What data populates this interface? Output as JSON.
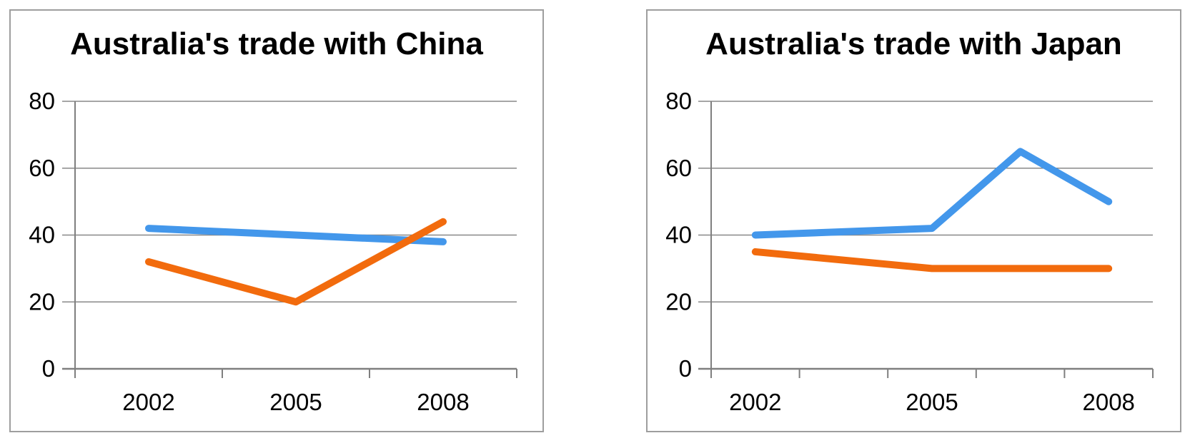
{
  "page": {
    "background_color": "#ffffff",
    "description": "Two side-by-side line charts comparing Australia's trade"
  },
  "chart_data": [
    {
      "type": "line",
      "title": "Australia's trade with China",
      "x_slots": 3,
      "x_tick_labels": [
        "2002",
        "2005",
        "2008"
      ],
      "ylim": [
        0,
        80
      ],
      "yticks": [
        0,
        20,
        40,
        60,
        80
      ],
      "grid": true,
      "legend": "none",
      "series": [
        {
          "name": "blue-series",
          "color": "#4397eb",
          "points": [
            {
              "slot": 0,
              "y": 42
            },
            {
              "slot": 1,
              "y": 40
            },
            {
              "slot": 2,
              "y": 38
            }
          ]
        },
        {
          "name": "orange-series",
          "color": "#f26b0d",
          "points": [
            {
              "slot": 0,
              "y": 32
            },
            {
              "slot": 1,
              "y": 20
            },
            {
              "slot": 2,
              "y": 44
            }
          ]
        }
      ]
    },
    {
      "type": "line",
      "title": "Australia's trade with Japan",
      "x_slots": 5,
      "x_tick_labels": [
        "2002",
        "",
        "2005",
        "",
        "2008"
      ],
      "ylim": [
        0,
        80
      ],
      "yticks": [
        0,
        20,
        40,
        60,
        80
      ],
      "grid": true,
      "legend": "none",
      "series": [
        {
          "name": "blue-series",
          "color": "#4397eb",
          "points": [
            {
              "slot": 0,
              "y": 40
            },
            {
              "slot": 2,
              "y": 42
            },
            {
              "slot": 3,
              "y": 65
            },
            {
              "slot": 4,
              "y": 50
            }
          ]
        },
        {
          "name": "orange-series",
          "color": "#f26b0d",
          "points": [
            {
              "slot": 0,
              "y": 35
            },
            {
              "slot": 2,
              "y": 30
            },
            {
              "slot": 4,
              "y": 30
            }
          ]
        }
      ]
    }
  ],
  "style": {
    "gridline_color": "#888888",
    "axis_color": "#7f7f7f",
    "text_color": "#000000",
    "panel_border_color": "#9e9e9e"
  }
}
